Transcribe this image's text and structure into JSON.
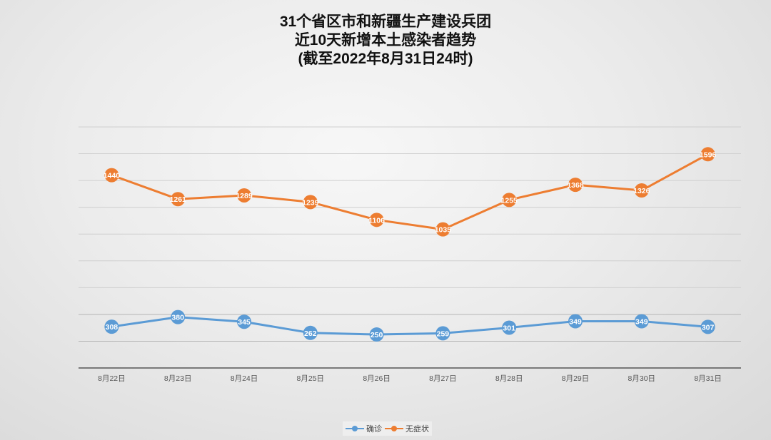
{
  "title": {
    "line1": "31个省区市和新疆生产建设兵团",
    "line2": "近10天新增本土感染者趋势",
    "line3": "(截至2022年8月31日24时)"
  },
  "legend": {
    "confirmed_label": "确诊",
    "asymptomatic_label": "无症状"
  },
  "colors": {
    "confirmed": "#5b9bd5",
    "asymptomatic": "#ed7d31",
    "gridline": "#cfcfcf",
    "axis": "#555555"
  },
  "chart_data": {
    "type": "line",
    "title": "31个省区市和新疆生产建设兵团 近10天新增本土感染者趋势 (截至2022年8月31日24时)",
    "xlabel": "",
    "ylabel": "",
    "categories": [
      "8月22日",
      "8月23日",
      "8月24日",
      "8月25日",
      "8月26日",
      "8月27日",
      "8月28日",
      "8月29日",
      "8月30日",
      "8月31日"
    ],
    "series": [
      {
        "name": "确诊",
        "color": "#5b9bd5",
        "values": [
          308,
          380,
          345,
          262,
          250,
          259,
          301,
          349,
          349,
          307
        ]
      },
      {
        "name": "无症状",
        "color": "#ed7d31",
        "values": [
          1440,
          1261,
          1289,
          1239,
          1106,
          1035,
          1255,
          1368,
          1326,
          1596
        ]
      }
    ],
    "ylim": [
      0,
      1800
    ],
    "grid": true,
    "y_axis_labels_visible": false,
    "data_labels": true,
    "legend_position": "bottom"
  }
}
